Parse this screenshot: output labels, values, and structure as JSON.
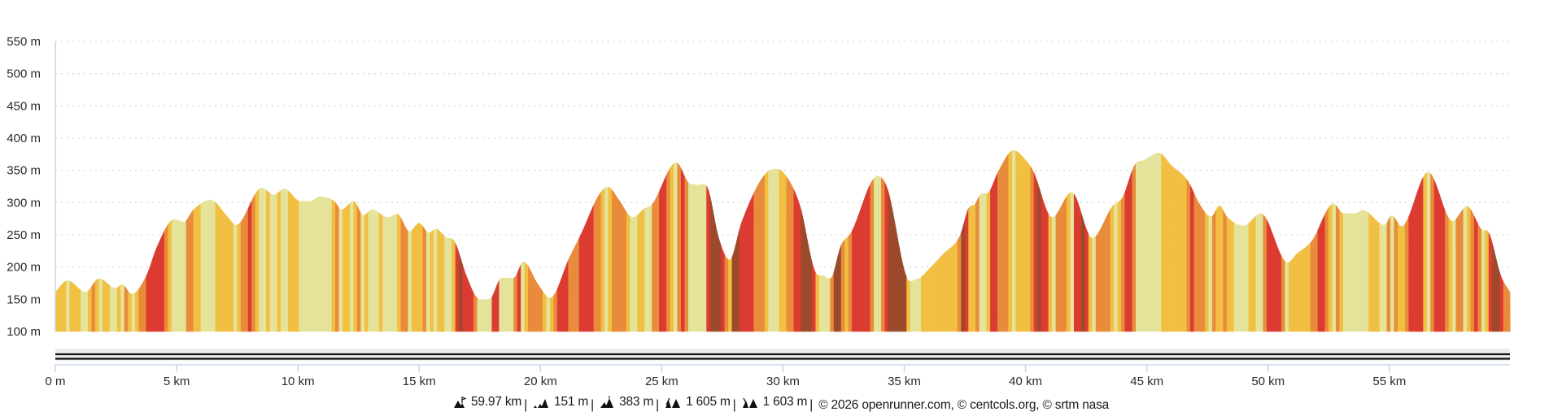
{
  "chart_data": {
    "type": "area",
    "title": "",
    "xlabel": "",
    "ylabel": "",
    "xlim": [
      0,
      59.97
    ],
    "ylim": [
      100,
      550
    ],
    "grid": true,
    "y_ticks": [
      {
        "value": 550,
        "label": "550 m"
      },
      {
        "value": 500,
        "label": "500 m"
      },
      {
        "value": 450,
        "label": "450 m"
      },
      {
        "value": 400,
        "label": "400 m"
      },
      {
        "value": 350,
        "label": "350 m"
      },
      {
        "value": 300,
        "label": "300 m"
      },
      {
        "value": 250,
        "label": "250 m"
      },
      {
        "value": 200,
        "label": "200 m"
      },
      {
        "value": 150,
        "label": "150 m"
      },
      {
        "value": 100,
        "label": "100 m"
      }
    ],
    "x_ticks": [
      {
        "value": 0,
        "label": "0 m"
      },
      {
        "value": 5,
        "label": "5 km"
      },
      {
        "value": 10,
        "label": "10 km"
      },
      {
        "value": 15,
        "label": "15 km"
      },
      {
        "value": 20,
        "label": "20 km"
      },
      {
        "value": 25,
        "label": "25 km"
      },
      {
        "value": 30,
        "label": "30 km"
      },
      {
        "value": 35,
        "label": "35 km"
      },
      {
        "value": 40,
        "label": "40 km"
      },
      {
        "value": 45,
        "label": "45 km"
      },
      {
        "value": 50,
        "label": "50 km"
      },
      {
        "value": 55,
        "label": "55 km"
      }
    ],
    "gradient_colors": [
      {
        "max_grade_pct": 2.5,
        "color": "#e5e39a"
      },
      {
        "max_grade_pct": 5,
        "color": "#f1bf42"
      },
      {
        "max_grade_pct": 8,
        "color": "#e88b3a"
      },
      {
        "max_grade_pct": 12,
        "color": "#dc3b31"
      },
      {
        "max_grade_pct": 100,
        "color": "#9b4a2b"
      }
    ],
    "profile_km": [
      0,
      0.5,
      1.25,
      1.8,
      2.5,
      2.75,
      3.15,
      3.75,
      4.2,
      4.9,
      5.3,
      5.7,
      6.4,
      7.1,
      7.45,
      8.4,
      8.55,
      9.0,
      9.45,
      10.1,
      10.5,
      10.9,
      11.5,
      11.8,
      12.3,
      12.7,
      13.05,
      13.7,
      14.1,
      14.6,
      15.0,
      15.4,
      15.7,
      16.1,
      16.45,
      16.95,
      17.35,
      17.9,
      18.4,
      18.9,
      19.3,
      19.9,
      20.4,
      21.2,
      21.65,
      22.45,
      22.8,
      23.2,
      23.8,
      24.3,
      24.6,
      25.6,
      26.1,
      26.5,
      26.9,
      27.35,
      27.8,
      28.3,
      29.2,
      29.7,
      30.0,
      30.7,
      31.3,
      31.7,
      31.95,
      32.4,
      32.8,
      33.9,
      34.3,
      35.1,
      35.55,
      36.0,
      36.6,
      37.3,
      37.65,
      37.9,
      38.2,
      38.4,
      38.9,
      39.5,
      40.0,
      40.3,
      41.1,
      41.9,
      42.75,
      43.6,
      44.0,
      44.5,
      44.9,
      45.5,
      46.0,
      46.7,
      47.15,
      47.65,
      48.0,
      48.3,
      49.0,
      49.7,
      50.8,
      51.2,
      51.8,
      52.7,
      53.1,
      53.6,
      53.9,
      54.8,
      55.1,
      55.5,
      56.6,
      57.6,
      58.2,
      58.8,
      59.1,
      59.6,
      59.97
    ],
    "profile_elev_m": [
      161,
      179,
      161,
      182,
      167,
      173,
      158,
      186,
      232,
      274,
      270,
      289,
      304,
      278,
      265,
      321,
      322,
      312,
      321,
      302,
      302,
      309,
      302,
      289,
      302,
      280,
      289,
      277,
      282,
      255,
      268,
      253,
      259,
      246,
      240,
      186,
      154,
      150,
      183,
      183,
      208,
      173,
      152,
      215,
      249,
      314,
      324,
      306,
      277,
      291,
      297,
      362,
      331,
      327,
      322,
      245,
      211,
      270,
      341,
      352,
      347,
      295,
      195,
      186,
      182,
      234,
      253,
      341,
      322,
      184,
      182,
      196,
      220,
      249,
      291,
      297,
      314,
      314,
      350,
      381,
      366,
      350,
      277,
      316,
      245,
      295,
      308,
      358,
      366,
      377,
      358,
      333,
      299,
      278,
      295,
      278,
      264,
      283,
      207,
      221,
      240,
      298,
      283,
      283,
      288,
      265,
      280,
      263,
      347,
      271,
      294,
      258,
      253,
      186,
      161
    ]
  },
  "footer": {
    "distance": "59.97 km",
    "min_elevation": "151 m",
    "max_elevation": "383 m",
    "ascent": "1 605 m",
    "descent": "1 603 m",
    "separator": "|",
    "credits": "© 2026 openrunner.com, © centcols.org, © srtm nasa"
  },
  "colors": {
    "grid": "#d9d9d9",
    "axis": "#c9d5ec",
    "slider_band": "#ececec",
    "slider_lines": "#111111"
  }
}
